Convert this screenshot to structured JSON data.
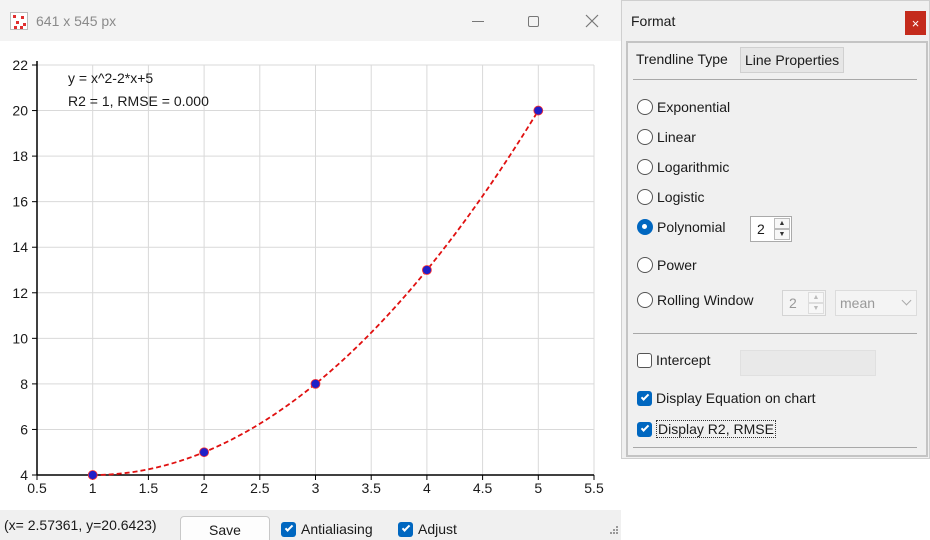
{
  "window": {
    "title": "641 x 545 px",
    "icon": "scatter-plot-icon"
  },
  "chart_data": {
    "type": "scatter",
    "x": [
      1,
      2,
      3,
      4,
      5
    ],
    "y": [
      4,
      5,
      8,
      13,
      20
    ],
    "trendline": {
      "type": "polynomial",
      "order": 2,
      "coefficients": [
        1,
        -2,
        5
      ]
    },
    "annotations": [
      "y = x^2-2*x+5",
      "R2 = 1, RMSE = 0.000"
    ],
    "xlim": [
      0.5,
      5.5
    ],
    "ylim": [
      4,
      22
    ],
    "xticks": [
      "0.5",
      "1",
      "1.5",
      "2",
      "2.5",
      "3",
      "3.5",
      "4",
      "4.5",
      "5",
      "5.5"
    ],
    "yticks": [
      "4",
      "6",
      "8",
      "10",
      "12",
      "14",
      "16",
      "18",
      "20",
      "22"
    ],
    "grid": true,
    "marker_color": "#2020c8",
    "trend_color": "#e01010"
  },
  "statusbar": {
    "coords": "(x= 2.57361,  y=20.6423)",
    "save_label": "Save",
    "antialiasing_label": "Antialiasing",
    "antialiasing_checked": true,
    "adjust_label": "Adjust",
    "adjust_checked": true
  },
  "format": {
    "title": "Format",
    "close_label": "×",
    "tabs": [
      "Trendline Type",
      "Line Properties"
    ],
    "types": [
      "Exponential",
      "Linear",
      "Logarithmic",
      "Logistic",
      "Polynomial",
      "Power",
      "Rolling Window"
    ],
    "selected_type": "Polynomial",
    "polynomial_order": "2",
    "rolling_window_size": "2",
    "rolling_method": "mean",
    "intercept_label": "Intercept",
    "intercept_checked": false,
    "display_equation_label": "Display Equation on chart",
    "display_equation_checked": true,
    "display_r2_label": "Display R2, RMSE",
    "display_r2_checked": true
  }
}
